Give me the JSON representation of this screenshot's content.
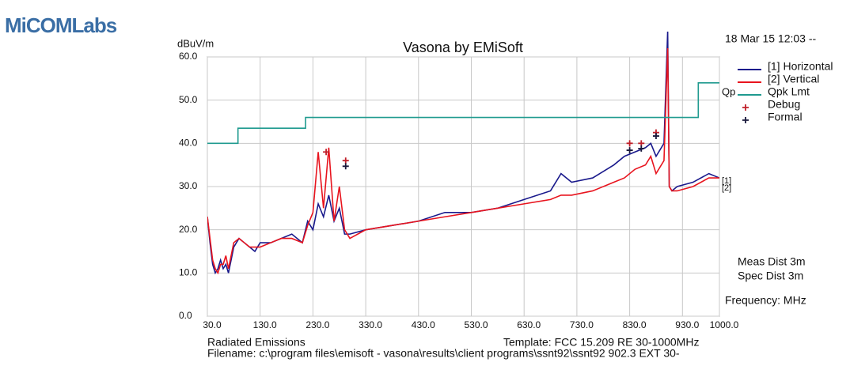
{
  "logo": "MiCOMLabs",
  "chart_data": {
    "type": "line",
    "title": "Vasona by EMiSoft",
    "y_label": "dBuV/m",
    "timestamp": "18 Mar 15 12:03 --",
    "x_label": "Frequency: MHz",
    "notes": [
      "Meas Dist 3m",
      "Spec Dist 3m"
    ],
    "limit_tag": "Qp",
    "trace_tags": [
      "[1]",
      "[2]"
    ],
    "footer": {
      "left": "Radiated Emissions",
      "template": "Template: FCC 15.209 RE 30-1000MHz",
      "filename": "Filename: c:\\program files\\emisoft - vasona\\results\\client programs\\ssnt92\\ssnt92 902.3 EXT 30-"
    },
    "grid": true,
    "xlim": [
      30,
      1000
    ],
    "ylim": [
      0,
      60
    ],
    "xticks": [
      {
        "value": 30,
        "label": "30.0"
      },
      {
        "value": 130,
        "label": "130.0"
      },
      {
        "value": 230,
        "label": "230.0"
      },
      {
        "value": 330,
        "label": "330.0"
      },
      {
        "value": 430,
        "label": "430.0"
      },
      {
        "value": 530,
        "label": "530.0"
      },
      {
        "value": 630,
        "label": "630.0"
      },
      {
        "value": 730,
        "label": "730.0"
      },
      {
        "value": 830,
        "label": "830.0"
      },
      {
        "value": 930,
        "label": "930.0"
      },
      {
        "value": 1000,
        "label": "1000.0"
      }
    ],
    "yticks": [
      {
        "value": 0,
        "label": "0.0"
      },
      {
        "value": 10,
        "label": "10.0"
      },
      {
        "value": 20,
        "label": "20.0"
      },
      {
        "value": 30,
        "label": "30.0"
      },
      {
        "value": 40,
        "label": "40.0"
      },
      {
        "value": 50,
        "label": "50.0"
      },
      {
        "value": 60,
        "label": "60.0"
      }
    ],
    "x": [
      30,
      35,
      40,
      45,
      50,
      55,
      60,
      65,
      70,
      80,
      90,
      100,
      110,
      120,
      130,
      150,
      170,
      190,
      210,
      220,
      230,
      240,
      250,
      260,
      270,
      280,
      290,
      300,
      330,
      380,
      430,
      480,
      530,
      580,
      630,
      680,
      700,
      720,
      760,
      800,
      820,
      840,
      860,
      870,
      880,
      895,
      902,
      905,
      910,
      920,
      950,
      980,
      1000
    ],
    "series": [
      {
        "name": "[1] Horizontal",
        "type": "line",
        "color": "#1a1a8c",
        "values": [
          23,
          17,
          12,
          10,
          11,
          13,
          11,
          12,
          10,
          16,
          18,
          17,
          16,
          15,
          17,
          17,
          18,
          19,
          17,
          22,
          20,
          26,
          23,
          28,
          22,
          25,
          19,
          19,
          20,
          21,
          22,
          24,
          24,
          25,
          27,
          29,
          33,
          31,
          32,
          35,
          37,
          38,
          39,
          40,
          37,
          40,
          66,
          30,
          29,
          30,
          31,
          33,
          32
        ]
      },
      {
        "name": "[2] Vertical",
        "type": "line",
        "color": "#e8141e",
        "values": [
          23,
          18,
          13,
          11,
          10,
          12,
          12,
          14,
          11,
          17,
          18,
          17,
          16,
          16,
          16,
          17,
          18,
          18,
          17,
          21,
          24,
          38,
          25,
          39,
          22,
          30,
          20,
          18,
          20,
          21,
          22,
          23,
          24,
          25,
          26,
          27,
          28,
          28,
          29,
          31,
          32,
          34,
          35,
          37,
          33,
          36,
          62,
          30,
          29,
          29,
          30,
          32,
          32
        ]
      },
      {
        "name": "Qpk Lmt",
        "type": "step",
        "color": "#1f9a8f",
        "x": [
          30,
          88,
          88,
          216,
          216,
          960,
          960,
          1000
        ],
        "values": [
          40,
          40,
          43.5,
          43.5,
          46,
          46,
          54,
          54
        ]
      },
      {
        "name": "Debug",
        "type": "scatter",
        "color": "#c0202a",
        "x": [
          255,
          292,
          830,
          852,
          880
        ],
        "values": [
          38,
          36,
          40,
          40,
          42.5
        ]
      },
      {
        "name": "Formal",
        "type": "scatter",
        "color": "#1a1a3c",
        "x": [
          292,
          830,
          852,
          880
        ],
        "values": [
          34.7,
          38.4,
          38.8,
          41.7
        ]
      }
    ]
  }
}
